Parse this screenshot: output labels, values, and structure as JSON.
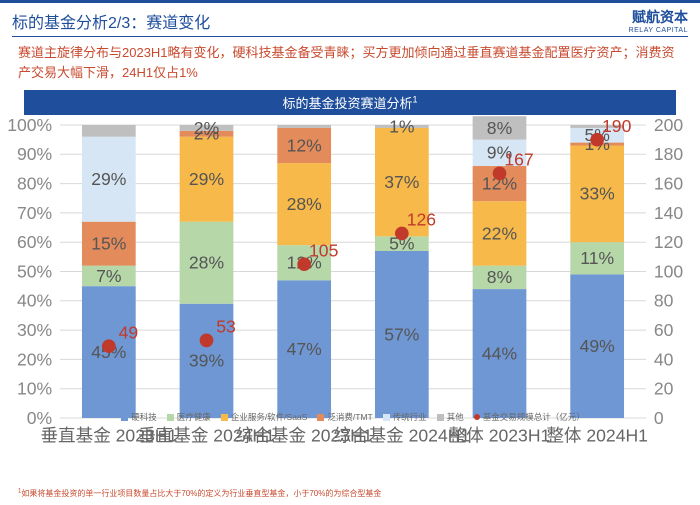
{
  "header": {
    "title": "标的基金分析2/3：赛道变化",
    "logo_cn": "赋航资本",
    "logo_en": "RELAY CAPITAL"
  },
  "subtitle": "赛道主旋律分布与2023H1略有变化，硬科技基金备受青睐；买方更加倾向通过垂直赛道基金配置医疗资产；消费资产交易大幅下滑，24H1仅占1%",
  "chart": {
    "title": "标的基金投资赛道分析",
    "title_sup": "1",
    "categories": [
      "垂直基金 2023H1",
      "垂直基金 2024H1",
      "综合基金 2023H1",
      "综合基金 2024H1",
      "整体 2023H1",
      "整体 2024H1"
    ],
    "series_names": [
      "硬科技",
      "医疗健康",
      "企业服务/软件/SaaS",
      "泛消费/TMT",
      "传统行业",
      "其他"
    ],
    "series_colors": [
      "#6f97d4",
      "#b6d7a8",
      "#f6b94a",
      "#e38b5b",
      "#d6e6f5",
      "#bfbfbf"
    ],
    "stacks": [
      [
        45,
        7,
        0,
        15,
        29,
        4
      ],
      [
        39,
        28,
        29,
        2,
        0,
        2
      ],
      [
        47,
        12,
        28,
        12,
        0,
        1
      ],
      [
        57,
        5,
        37,
        0,
        0,
        1
      ],
      [
        44,
        8,
        22,
        12,
        9,
        8
      ],
      [
        49,
        11,
        33,
        1,
        5,
        1
      ]
    ],
    "stack_labels": [
      [
        "45%",
        "7%",
        null,
        "15%",
        "29%",
        null
      ],
      [
        "39%",
        "28%",
        "29%",
        "2%",
        null,
        "2%"
      ],
      [
        "47%",
        "12%",
        "28%",
        "12%",
        null,
        null
      ],
      [
        "57%",
        "5%",
        "37%",
        null,
        null,
        "1%"
      ],
      [
        "44%",
        "8%",
        "22%",
        "12%",
        "9%",
        "8%"
      ],
      [
        "49%",
        "11%",
        "33%",
        "1%",
        "5%",
        null
      ]
    ],
    "line_name": "基金交易规模总计（亿元）",
    "line_color": "#c0392b",
    "line_values": [
      49,
      53,
      105,
      126,
      167,
      190
    ],
    "ylim_left": [
      0,
      100
    ],
    "ytick_left_step": 10,
    "ylim_right": [
      0,
      200
    ],
    "ytick_right_step": 20,
    "bar_width": 0.55,
    "background": "#ffffff"
  },
  "footnote": "如果将基金投资的单一行业项目数量占比大于70%的定义为行业垂直型基金，小于70%的为综合型基金",
  "footnote_sup": "1"
}
